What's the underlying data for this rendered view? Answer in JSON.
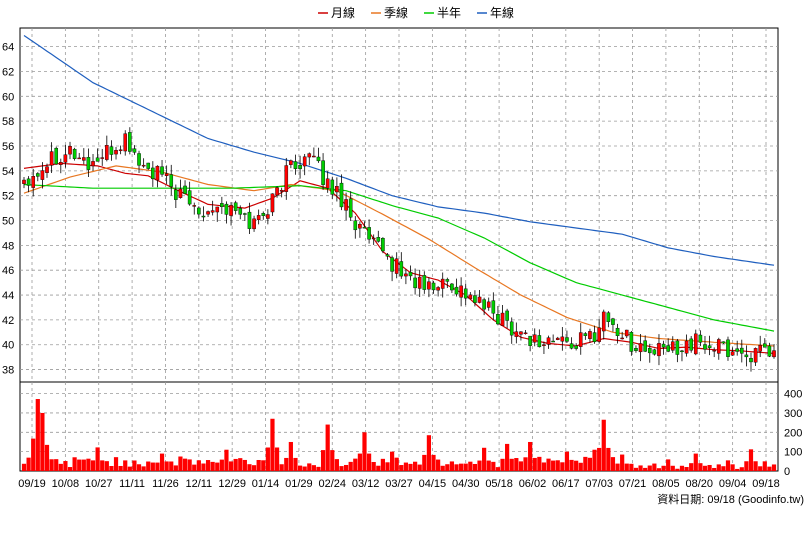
{
  "chart_data": {
    "type": "candlestick_with_volume",
    "legend": [
      {
        "label": "月線",
        "color": "#cc0000"
      },
      {
        "label": "季線",
        "color": "#e87722"
      },
      {
        "label": "半年",
        "color": "#00cc00"
      },
      {
        "label": "年線",
        "color": "#1f5fbf"
      }
    ],
    "price_axis": {
      "ticks": [
        "64",
        "62",
        "60",
        "58",
        "56",
        "54",
        "52",
        "50",
        "48",
        "46",
        "44",
        "42",
        "40",
        "38"
      ],
      "ylim": [
        37,
        65.5
      ]
    },
    "volume_axis": {
      "ticks": [
        "400",
        "300",
        "200",
        "100",
        "0"
      ],
      "ylim": [
        0,
        460
      ]
    },
    "x_ticks": [
      "09/19",
      "10/08",
      "10/27",
      "11/11",
      "11/26",
      "12/11",
      "12/29",
      "01/14",
      "01/29",
      "02/24",
      "03/12",
      "03/27",
      "04/15",
      "04/30",
      "05/18",
      "06/02",
      "06/17",
      "07/03",
      "07/21",
      "08/05",
      "08/20",
      "09/04",
      "09/18"
    ],
    "ma_series": [
      {
        "name": "月線",
        "color": "#cc0000",
        "anchors": [
          [
            0,
            54.2
          ],
          [
            8,
            54.6
          ],
          [
            16,
            54.4
          ],
          [
            22,
            53.8
          ],
          [
            27,
            53.6
          ],
          [
            33,
            52.5
          ],
          [
            40,
            51.3
          ],
          [
            48,
            51.0
          ],
          [
            54,
            51.8
          ],
          [
            60,
            53.2
          ],
          [
            66,
            52.6
          ],
          [
            72,
            50.6
          ],
          [
            78,
            47.5
          ],
          [
            84,
            45.8
          ],
          [
            90,
            45.2
          ],
          [
            96,
            44.0
          ],
          [
            102,
            42.0
          ],
          [
            108,
            40.6
          ],
          [
            114,
            40.1
          ],
          [
            120,
            39.9
          ],
          [
            126,
            40.5
          ],
          [
            132,
            40.2
          ],
          [
            138,
            39.7
          ],
          [
            144,
            39.8
          ],
          [
            150,
            39.6
          ],
          [
            156,
            39.5
          ],
          [
            163,
            39.3
          ]
        ]
      },
      {
        "name": "季線",
        "color": "#e87722",
        "anchors": [
          [
            0,
            52.2
          ],
          [
            10,
            53.5
          ],
          [
            20,
            54.4
          ],
          [
            30,
            53.9
          ],
          [
            40,
            52.9
          ],
          [
            50,
            52.4
          ],
          [
            58,
            52.9
          ],
          [
            68,
            52.4
          ],
          [
            78,
            50.5
          ],
          [
            88,
            48.5
          ],
          [
            98,
            46.2
          ],
          [
            108,
            44.0
          ],
          [
            118,
            42.2
          ],
          [
            128,
            41.0
          ],
          [
            138,
            40.5
          ],
          [
            150,
            40.2
          ],
          [
            163,
            39.9
          ]
        ]
      },
      {
        "name": "半年",
        "color": "#00cc00",
        "anchors": [
          [
            0,
            52.9
          ],
          [
            15,
            52.6
          ],
          [
            30,
            52.6
          ],
          [
            45,
            52.6
          ],
          [
            60,
            52.8
          ],
          [
            70,
            52.4
          ],
          [
            80,
            51.2
          ],
          [
            90,
            50.2
          ],
          [
            100,
            48.6
          ],
          [
            110,
            46.6
          ],
          [
            120,
            45.0
          ],
          [
            130,
            44.0
          ],
          [
            140,
            43.0
          ],
          [
            150,
            42.0
          ],
          [
            163,
            41.1
          ]
        ]
      },
      {
        "name": "年線",
        "color": "#1f5fbf",
        "anchors": [
          [
            0,
            64.9
          ],
          [
            15,
            61.1
          ],
          [
            30,
            58.4
          ],
          [
            40,
            56.6
          ],
          [
            50,
            55.5
          ],
          [
            60,
            54.6
          ],
          [
            70,
            53.4
          ],
          [
            80,
            52.0
          ],
          [
            90,
            51.1
          ],
          [
            100,
            50.6
          ],
          [
            110,
            49.9
          ],
          [
            120,
            49.4
          ],
          [
            130,
            48.9
          ],
          [
            140,
            47.8
          ],
          [
            150,
            47.1
          ],
          [
            163,
            46.4
          ]
        ]
      }
    ],
    "price_path": [
      [
        0,
        53.4
      ],
      [
        3,
        54.0
      ],
      [
        6,
        55.2
      ],
      [
        10,
        55.7
      ],
      [
        14,
        54.5
      ],
      [
        18,
        55.3
      ],
      [
        22,
        56.5
      ],
      [
        26,
        54.2
      ],
      [
        30,
        53.5
      ],
      [
        34,
        51.9
      ],
      [
        38,
        50.9
      ],
      [
        42,
        51.3
      ],
      [
        46,
        50.6
      ],
      [
        50,
        49.8
      ],
      [
        54,
        51.6
      ],
      [
        58,
        54.6
      ],
      [
        62,
        55.1
      ],
      [
        66,
        53.0
      ],
      [
        70,
        51.5
      ],
      [
        72,
        49.8
      ],
      [
        76,
        47.9
      ],
      [
        80,
        46.6
      ],
      [
        84,
        45.3
      ],
      [
        88,
        44.5
      ],
      [
        92,
        45.1
      ],
      [
        96,
        44.2
      ],
      [
        100,
        43.0
      ],
      [
        104,
        42.1
      ],
      [
        108,
        41.0
      ],
      [
        112,
        40.2
      ],
      [
        116,
        40.4
      ],
      [
        120,
        40.1
      ],
      [
        124,
        40.9
      ],
      [
        126,
        42.5
      ],
      [
        128,
        41.5
      ],
      [
        132,
        40.2
      ],
      [
        136,
        39.3
      ],
      [
        140,
        39.6
      ],
      [
        144,
        40.2
      ],
      [
        148,
        40.0
      ],
      [
        152,
        39.7
      ],
      [
        156,
        39.3
      ],
      [
        160,
        39.2
      ],
      [
        163,
        39.1
      ]
    ],
    "volume_events": [
      [
        3,
        372
      ],
      [
        4,
        300
      ],
      [
        16,
        122
      ],
      [
        30,
        90
      ],
      [
        44,
        110
      ],
      [
        54,
        270
      ],
      [
        58,
        150
      ],
      [
        66,
        240
      ],
      [
        74,
        200
      ],
      [
        80,
        100
      ],
      [
        88,
        185
      ],
      [
        100,
        120
      ],
      [
        105,
        140
      ],
      [
        110,
        150
      ],
      [
        118,
        100
      ],
      [
        124,
        110
      ],
      [
        126,
        265
      ],
      [
        130,
        85
      ],
      [
        140,
        60
      ],
      [
        146,
        90
      ],
      [
        153,
        55
      ],
      [
        158,
        112
      ],
      [
        161,
        50
      ]
    ],
    "credit_text": "資料日期: 09/18  (Goodinfo.tw)"
  }
}
